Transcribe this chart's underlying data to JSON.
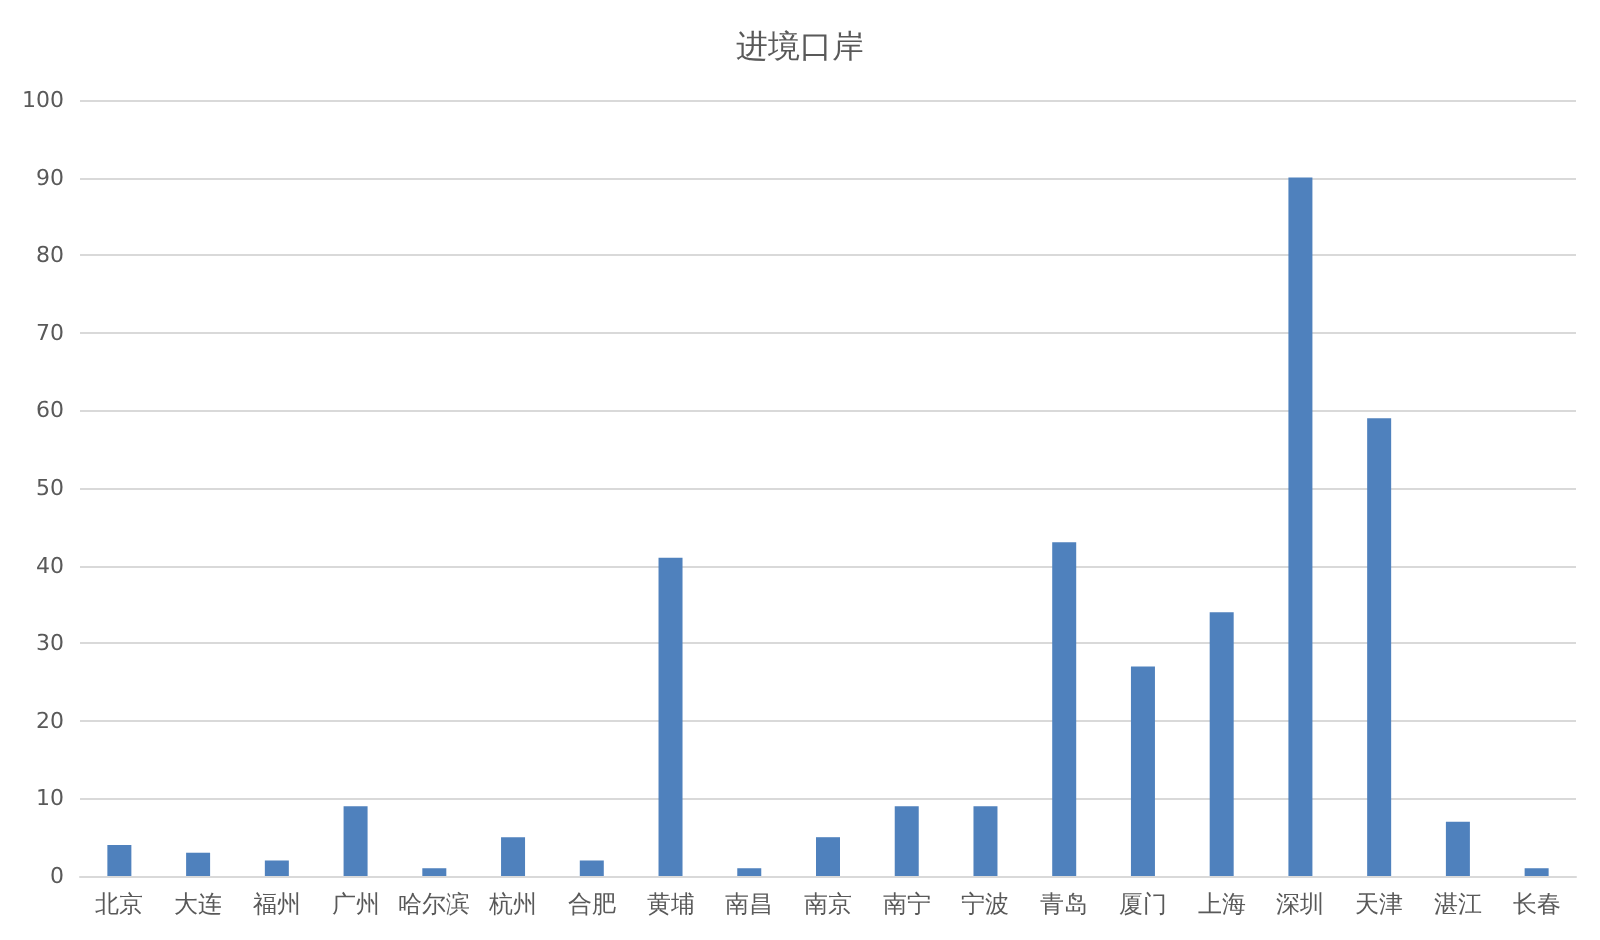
{
  "chart_data": {
    "type": "bar",
    "title": "进境口岸",
    "categories": [
      "北京",
      "大连",
      "福州",
      "广州",
      "哈尔滨",
      "杭州",
      "合肥",
      "黄埔",
      "南昌",
      "南京",
      "南宁",
      "宁波",
      "青岛",
      "厦门",
      "上海",
      "深圳",
      "天津",
      "湛江",
      "长春"
    ],
    "values": [
      4,
      3,
      2,
      9,
      1,
      5,
      2,
      41,
      1,
      5,
      9,
      9,
      43,
      27,
      34,
      90,
      59,
      7,
      1
    ],
    "color": "#4f81bd",
    "ylim": [
      0,
      100
    ],
    "yticks": [
      0,
      10,
      20,
      30,
      40,
      50,
      60,
      70,
      80,
      90,
      100
    ],
    "grid": "y"
  }
}
